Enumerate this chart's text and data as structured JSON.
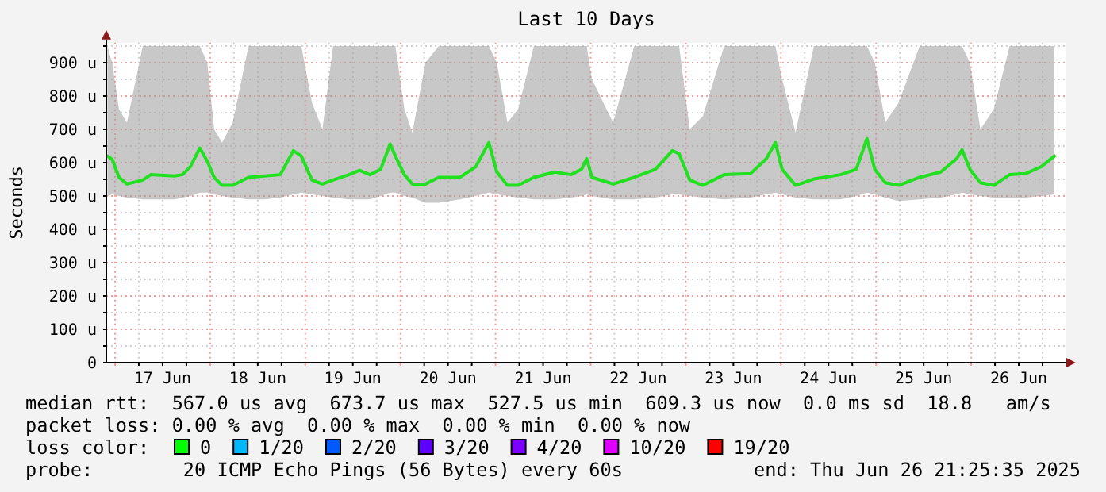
{
  "chart_data": {
    "type": "line",
    "title": "Last 10 Days",
    "ylabel": "Seconds",
    "xlim": [
      "2025-06-16T21:48",
      "2025-06-27T00:00"
    ],
    "ylim": [
      0,
      960
    ],
    "xticks": [
      {
        "value": "2025-06-17T00:00",
        "label": null
      },
      {
        "value": "2025-06-17T06:00",
        "label": null
      },
      {
        "value": "2025-06-17T12:00",
        "label": "17 Jun"
      },
      {
        "value": "2025-06-17T18:00",
        "label": null
      },
      {
        "value": "2025-06-18T00:00",
        "label": null
      },
      {
        "value": "2025-06-18T06:00",
        "label": null
      },
      {
        "value": "2025-06-18T12:00",
        "label": "18 Jun"
      },
      {
        "value": "2025-06-18T18:00",
        "label": null
      },
      {
        "value": "2025-06-19T00:00",
        "label": null
      },
      {
        "value": "2025-06-19T06:00",
        "label": null
      },
      {
        "value": "2025-06-19T12:00",
        "label": "19 Jun"
      },
      {
        "value": "2025-06-19T18:00",
        "label": null
      },
      {
        "value": "2025-06-20T00:00",
        "label": null
      },
      {
        "value": "2025-06-20T06:00",
        "label": null
      },
      {
        "value": "2025-06-20T12:00",
        "label": "20 Jun"
      },
      {
        "value": "2025-06-20T18:00",
        "label": null
      },
      {
        "value": "2025-06-21T00:00",
        "label": null
      },
      {
        "value": "2025-06-21T06:00",
        "label": null
      },
      {
        "value": "2025-06-21T12:00",
        "label": "21 Jun"
      },
      {
        "value": "2025-06-21T18:00",
        "label": null
      },
      {
        "value": "2025-06-22T00:00",
        "label": null
      },
      {
        "value": "2025-06-22T06:00",
        "label": null
      },
      {
        "value": "2025-06-22T12:00",
        "label": "22 Jun"
      },
      {
        "value": "2025-06-22T18:00",
        "label": null
      },
      {
        "value": "2025-06-23T00:00",
        "label": null
      },
      {
        "value": "2025-06-23T06:00",
        "label": null
      },
      {
        "value": "2025-06-23T12:00",
        "label": "23 Jun"
      },
      {
        "value": "2025-06-23T18:00",
        "label": null
      },
      {
        "value": "2025-06-24T00:00",
        "label": null
      },
      {
        "value": "2025-06-24T06:00",
        "label": null
      },
      {
        "value": "2025-06-24T12:00",
        "label": "24 Jun"
      },
      {
        "value": "2025-06-24T18:00",
        "label": null
      },
      {
        "value": "2025-06-25T00:00",
        "label": null
      },
      {
        "value": "2025-06-25T06:00",
        "label": null
      },
      {
        "value": "2025-06-25T12:00",
        "label": "25 Jun"
      },
      {
        "value": "2025-06-25T18:00",
        "label": null
      },
      {
        "value": "2025-06-26T00:00",
        "label": null
      },
      {
        "value": "2025-06-26T06:00",
        "label": null
      },
      {
        "value": "2025-06-26T12:00",
        "label": "26 Jun"
      },
      {
        "value": "2025-06-26T18:00",
        "label": null
      }
    ],
    "yticks": [
      0,
      {
        "value": 50,
        "label": null
      },
      {
        "value": 100,
        "label": "100 u"
      },
      {
        "value": 150,
        "label": null
      },
      {
        "value": 200,
        "label": "200 u"
      },
      {
        "value": 250,
        "label": null
      },
      {
        "value": 300,
        "label": "300 u"
      },
      {
        "value": 350,
        "label": null
      },
      {
        "value": 400,
        "label": "400 u"
      },
      {
        "value": 450,
        "label": null
      },
      {
        "value": 500,
        "label": "500 u"
      },
      {
        "value": 550,
        "label": null
      },
      {
        "value": 600,
        "label": "600 u"
      },
      {
        "value": 650,
        "label": null
      },
      {
        "value": 700,
        "label": "700 u"
      },
      {
        "value": 750,
        "label": null
      },
      {
        "value": 800,
        "label": "800 u"
      },
      {
        "value": 850,
        "label": null
      },
      {
        "value": 900,
        "label": "900 u"
      },
      {
        "value": 950,
        "label": null
      }
    ],
    "grid": true,
    "series": [
      {
        "color": "#20e020",
        "x": [
          "2025-06-16T22:05",
          "2025-06-16T23:17",
          "2025-06-17T01:00",
          "2025-06-17T03:00",
          "2025-06-17T07:00",
          "2025-06-17T09:00",
          "2025-06-17T15:00",
          "2025-06-17T17:00",
          "2025-06-17T19:00",
          "2025-06-17T21:24",
          "2025-06-17T23:17",
          "2025-06-18T01:00",
          "2025-06-18T03:00",
          "2025-06-18T05:41",
          "2025-06-18T09:41",
          "2025-06-18T13:41",
          "2025-06-18T17:41",
          "2025-06-18T21:00",
          "2025-06-18T23:00",
          "2025-06-19T01:41",
          "2025-06-19T04:19",
          "2025-06-19T07:00",
          "2025-06-19T11:00",
          "2025-06-19T13:41",
          "2025-06-19T16:19",
          "2025-06-19T19:00",
          "2025-06-19T21:24",
          "2025-06-19T22:43",
          "2025-06-20T01:00",
          "2025-06-20T03:00",
          "2025-06-20T06:19",
          "2025-06-20T09:41",
          "2025-06-20T15:00",
          "2025-06-20T19:00",
          "2025-06-20T22:19",
          "2025-06-21T00:19",
          "2025-06-21T03:00",
          "2025-06-21T05:41",
          "2025-06-21T09:41",
          "2025-06-21T15:00",
          "2025-06-21T19:00",
          "2025-06-21T21:41",
          "2025-06-21T23:00",
          "2025-06-22T00:19",
          "2025-06-22T05:41",
          "2025-06-22T11:00",
          "2025-06-22T16:19",
          "2025-06-22T20:36",
          "2025-06-22T22:19",
          "2025-06-23T01:00",
          "2025-06-23T04:19",
          "2025-06-23T09:41",
          "2025-06-23T16:19",
          "2025-06-23T20:19",
          "2025-06-23T22:36",
          "2025-06-24T00:19",
          "2025-06-24T03:41",
          "2025-06-24T08:19",
          "2025-06-24T15:00",
          "2025-06-24T19:00",
          "2025-06-24T21:41",
          "2025-06-24T23:41",
          "2025-06-25T02:19",
          "2025-06-25T05:41",
          "2025-06-25T11:00",
          "2025-06-25T16:19",
          "2025-06-25T20:19",
          "2025-06-25T21:41",
          "2025-06-25T23:41",
          "2025-06-26T02:19",
          "2025-06-26T05:41",
          "2025-06-26T09:41",
          "2025-06-26T13:41",
          "2025-06-26T17:41",
          "2025-06-26T21:00"
        ],
        "values": [
          620,
          610,
          556,
          536,
          548,
          564,
          560,
          564,
          588,
          644,
          604,
          556,
          532,
          532,
          556,
          560,
          564,
          636,
          620,
          548,
          536,
          548,
          564,
          577,
          564,
          580,
          656,
          620,
          564,
          536,
          536,
          556,
          556,
          588,
          660,
          572,
          532,
          532,
          556,
          572,
          564,
          580,
          612,
          556,
          536,
          556,
          580,
          636,
          627,
          548,
          532,
          564,
          567,
          612,
          660,
          580,
          532,
          551,
          564,
          580,
          672,
          580,
          540,
          532,
          556,
          572,
          612,
          639,
          580,
          540,
          532,
          564,
          567,
          588,
          620
        ],
        "upper": [
          950,
          900,
          760,
          720,
          950,
          950,
          950,
          950,
          950,
          950,
          900,
          700,
          660,
          720,
          950,
          950,
          950,
          950,
          950,
          780,
          700,
          950,
          950,
          950,
          950,
          950,
          950,
          950,
          760,
          690,
          900,
          950,
          950,
          950,
          950,
          900,
          720,
          760,
          950,
          950,
          950,
          950,
          950,
          850,
          720,
          950,
          950,
          950,
          950,
          700,
          740,
          950,
          950,
          950,
          950,
          850,
          690,
          950,
          950,
          950,
          950,
          900,
          720,
          780,
          950,
          950,
          950,
          950,
          900,
          700,
          760,
          950,
          950,
          950,
          950
        ],
        "lower": [
          500,
          505,
          500,
          495,
          490,
          490,
          490,
          495,
          500,
          510,
          510,
          505,
          500,
          495,
          490,
          490,
          495,
          505,
          510,
          505,
          500,
          495,
          490,
          490,
          490,
          500,
          510,
          510,
          500,
          495,
          480,
          480,
          490,
          500,
          510,
          505,
          500,
          495,
          490,
          490,
          495,
          500,
          505,
          500,
          490,
          490,
          495,
          505,
          505,
          500,
          495,
          490,
          495,
          505,
          510,
          505,
          495,
          490,
          490,
          500,
          510,
          505,
          495,
          485,
          490,
          495,
          505,
          510,
          505,
          500,
          495,
          495,
          495,
          500,
          505
        ]
      }
    ],
    "annotations": [
      "median rtt:  567.0 us avg  673.7 us max  527.5 us min  609.3 us now  0.0 ms sd  18.8   am/s",
      "packet loss: 0.00 % avg  0.00 % max  0.00 % min  0.00 % now",
      "loss color:",
      "0",
      "1/20",
      "2/20",
      "3/20",
      "4/20",
      "10/20",
      "19/20",
      "probe:        20 ICMP Echo Pings (56 Bytes) every 60s",
      "end: Thu Jun 26 21:25:35 2025"
    ]
  }
}
